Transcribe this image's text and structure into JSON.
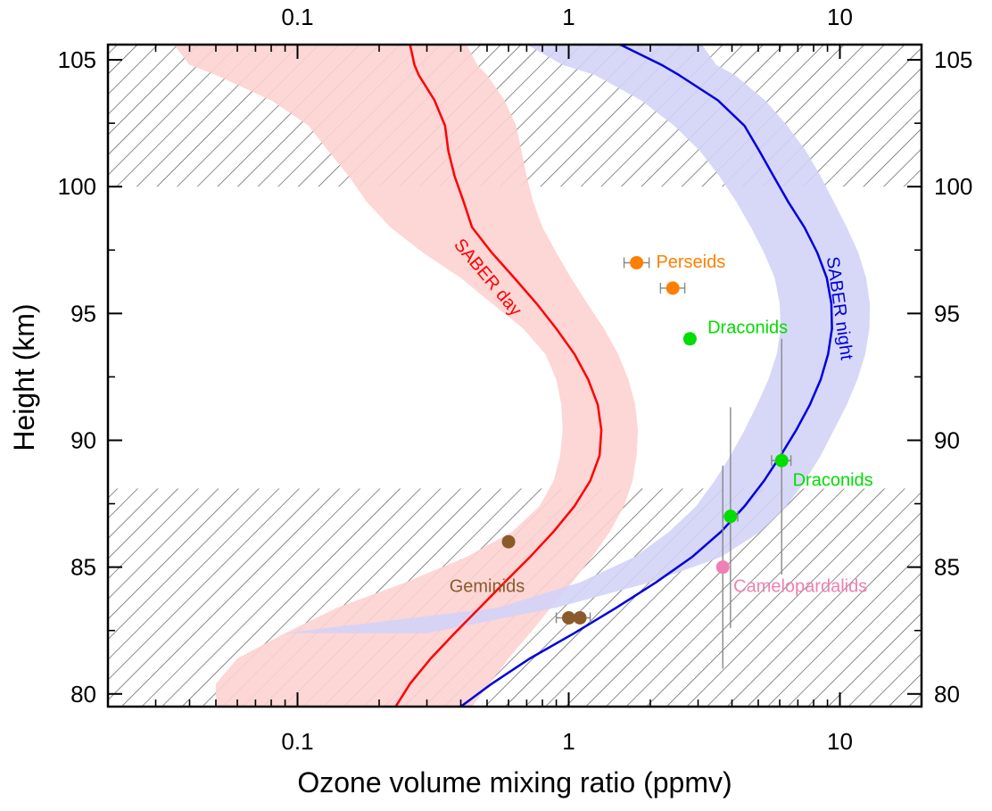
{
  "chart_data": {
    "type": "scatter",
    "title": "",
    "xlabel": "Ozone volume mixing ratio (ppmv)",
    "ylabel": "Height (km)",
    "x_scale": "log",
    "xlim": [
      0.02,
      20
    ],
    "ylim": [
      79.5,
      105.6
    ],
    "x_ticks": [
      0.1,
      1,
      10
    ],
    "x_tick_labels": [
      "0.1",
      "1",
      "10"
    ],
    "y_ticks": [
      80,
      85,
      90,
      95,
      100,
      105
    ],
    "y_tick_labels": [
      "80",
      "85",
      "90",
      "95",
      "100",
      "105"
    ],
    "grid": false,
    "colors": {
      "day_line": "#ff0000",
      "day_band": "#fdd2d2",
      "night_line": "#0000dd",
      "night_band": "#d3d3f7",
      "hatch": "#555555",
      "perseids": "#ff7f00",
      "draconids": "#00dd00",
      "geminids": "#8b5a2b",
      "camelopardalids": "#f07fb4",
      "error_bar": "#888888"
    },
    "hatched_regions": [
      {
        "y_range": [
          100,
          105.6
        ]
      },
      {
        "y_range": [
          79.5,
          88.1
        ]
      }
    ],
    "series": [
      {
        "name": "SABER day",
        "kind": "line",
        "color": "#ff0000",
        "label_angle": 50,
        "label_at": {
          "x": 0.5,
          "y": 96.4
        },
        "points": [
          [
            0.23,
            79.5
          ],
          [
            0.26,
            80.4
          ],
          [
            0.31,
            81.4
          ],
          [
            0.38,
            82.4
          ],
          [
            0.47,
            83.4
          ],
          [
            0.58,
            84.4
          ],
          [
            0.72,
            85.4
          ],
          [
            0.88,
            86.4
          ],
          [
            1.05,
            87.4
          ],
          [
            1.2,
            88.4
          ],
          [
            1.3,
            89.4
          ],
          [
            1.32,
            90.4
          ],
          [
            1.28,
            91.4
          ],
          [
            1.18,
            92.4
          ],
          [
            1.05,
            93.4
          ],
          [
            0.9,
            94.4
          ],
          [
            0.76,
            95.4
          ],
          [
            0.63,
            96.4
          ],
          [
            0.52,
            97.4
          ],
          [
            0.44,
            98.4
          ],
          [
            0.41,
            99.4
          ],
          [
            0.38,
            100.4
          ],
          [
            0.36,
            101.4
          ],
          [
            0.35,
            102.4
          ],
          [
            0.32,
            103.4
          ],
          [
            0.28,
            104.4
          ],
          [
            0.27,
            104.8
          ],
          [
            0.26,
            105.6
          ]
        ]
      },
      {
        "name": "SABER day band",
        "kind": "band",
        "color": "#fdd2d2",
        "lower": [
          [
            0.05,
            79.5
          ],
          [
            0.05,
            80.4
          ],
          [
            0.06,
            81.4
          ],
          [
            0.09,
            82.4
          ],
          [
            0.14,
            83.4
          ],
          [
            0.25,
            84.4
          ],
          [
            0.42,
            85.4
          ],
          [
            0.62,
            86.4
          ],
          [
            0.78,
            87.4
          ],
          [
            0.88,
            88.4
          ],
          [
            0.93,
            89.4
          ],
          [
            0.95,
            90.4
          ],
          [
            0.94,
            91.4
          ],
          [
            0.9,
            92.4
          ],
          [
            0.82,
            93.4
          ],
          [
            0.68,
            94.4
          ],
          [
            0.52,
            95.4
          ],
          [
            0.4,
            96.4
          ],
          [
            0.29,
            97.4
          ],
          [
            0.22,
            98.4
          ],
          [
            0.18,
            99.4
          ],
          [
            0.155,
            100.4
          ],
          [
            0.13,
            101.4
          ],
          [
            0.11,
            102.4
          ],
          [
            0.08,
            103.4
          ],
          [
            0.05,
            104.4
          ],
          [
            0.04,
            104.8
          ],
          [
            0.035,
            105.6
          ]
        ],
        "upper": [
          [
            0.44,
            79.5
          ],
          [
            0.51,
            80.4
          ],
          [
            0.6,
            81.4
          ],
          [
            0.72,
            82.4
          ],
          [
            0.86,
            83.4
          ],
          [
            1.03,
            84.4
          ],
          [
            1.22,
            85.4
          ],
          [
            1.42,
            86.4
          ],
          [
            1.6,
            87.4
          ],
          [
            1.72,
            88.4
          ],
          [
            1.78,
            89.4
          ],
          [
            1.8,
            90.4
          ],
          [
            1.76,
            91.4
          ],
          [
            1.66,
            92.4
          ],
          [
            1.52,
            93.4
          ],
          [
            1.35,
            94.4
          ],
          [
            1.17,
            95.4
          ],
          [
            1.02,
            96.4
          ],
          [
            0.9,
            97.4
          ],
          [
            0.8,
            98.4
          ],
          [
            0.74,
            99.4
          ],
          [
            0.7,
            100.4
          ],
          [
            0.67,
            101.4
          ],
          [
            0.64,
            102.4
          ],
          [
            0.58,
            103.4
          ],
          [
            0.5,
            104.4
          ],
          [
            0.46,
            104.8
          ],
          [
            0.42,
            105.6
          ]
        ]
      },
      {
        "name": "SABER night",
        "kind": "line",
        "color": "#0000dd",
        "label_angle": 82,
        "label_at": {
          "x": 9.9,
          "y": 95.2
        },
        "points": [
          [
            0.4,
            79.5
          ],
          [
            0.52,
            80.4
          ],
          [
            0.72,
            81.4
          ],
          [
            1.05,
            82.4
          ],
          [
            1.5,
            83.4
          ],
          [
            2.1,
            84.4
          ],
          [
            2.85,
            85.4
          ],
          [
            3.65,
            86.4
          ],
          [
            4.45,
            87.4
          ],
          [
            5.25,
            88.4
          ],
          [
            6.05,
            89.4
          ],
          [
            6.9,
            90.4
          ],
          [
            7.75,
            91.4
          ],
          [
            8.5,
            92.4
          ],
          [
            9.05,
            93.4
          ],
          [
            9.35,
            94.4
          ],
          [
            9.3,
            95.4
          ],
          [
            8.95,
            96.4
          ],
          [
            8.25,
            97.4
          ],
          [
            7.4,
            98.4
          ],
          [
            6.45,
            99.4
          ],
          [
            5.7,
            100.4
          ],
          [
            5.05,
            101.4
          ],
          [
            4.45,
            102.4
          ],
          [
            3.55,
            103.4
          ],
          [
            2.55,
            104.4
          ],
          [
            2.2,
            104.8
          ],
          [
            1.55,
            105.6
          ]
        ]
      },
      {
        "name": "SABER night band",
        "kind": "band",
        "color": "#d3d3f7",
        "lower": [
          [
            0.02,
            79.5
          ],
          [
            0.02,
            80.4
          ],
          [
            0.02,
            81.4
          ],
          [
            0.02,
            82.4
          ],
          [
            0.09,
            82.4
          ],
          [
            0.55,
            83.4
          ],
          [
            1.1,
            84.4
          ],
          [
            1.75,
            85.4
          ],
          [
            2.35,
            86.4
          ],
          [
            2.95,
            87.4
          ],
          [
            3.45,
            88.4
          ],
          [
            3.95,
            89.4
          ],
          [
            4.45,
            90.4
          ],
          [
            4.95,
            91.4
          ],
          [
            5.45,
            92.4
          ],
          [
            5.85,
            93.4
          ],
          [
            6.05,
            94.4
          ],
          [
            6.0,
            95.4
          ],
          [
            5.75,
            96.4
          ],
          [
            5.25,
            97.4
          ],
          [
            4.7,
            98.4
          ],
          [
            4.15,
            99.4
          ],
          [
            3.6,
            100.4
          ],
          [
            3.05,
            101.4
          ],
          [
            2.45,
            102.4
          ],
          [
            1.85,
            103.4
          ],
          [
            1.25,
            104.4
          ],
          [
            0.95,
            104.8
          ],
          [
            0.7,
            105.6
          ]
        ],
        "upper": [
          [
            0.02,
            79.5
          ],
          [
            0.02,
            80.4
          ],
          [
            0.02,
            81.4
          ],
          [
            0.02,
            82.4
          ],
          [
            0.3,
            82.4
          ],
          [
            0.9,
            83.4
          ],
          [
            2.0,
            84.4
          ],
          [
            3.65,
            85.4
          ],
          [
            5.1,
            86.4
          ],
          [
            6.35,
            87.4
          ],
          [
            7.45,
            88.4
          ],
          [
            8.5,
            89.4
          ],
          [
            9.5,
            90.4
          ],
          [
            10.6,
            91.4
          ],
          [
            11.6,
            92.4
          ],
          [
            12.4,
            93.4
          ],
          [
            12.85,
            94.4
          ],
          [
            12.9,
            95.4
          ],
          [
            12.5,
            96.4
          ],
          [
            11.7,
            97.4
          ],
          [
            10.6,
            98.4
          ],
          [
            9.5,
            99.4
          ],
          [
            8.5,
            100.4
          ],
          [
            7.5,
            101.4
          ],
          [
            6.4,
            102.4
          ],
          [
            5.3,
            103.4
          ],
          [
            4.1,
            104.4
          ],
          [
            3.5,
            104.8
          ],
          [
            3.1,
            105.6
          ]
        ]
      },
      {
        "name": "Perseids",
        "kind": "points",
        "color": "#ff7f00",
        "points": [
          {
            "x": 1.78,
            "y": 97.0,
            "xerr": [
              1.6,
              1.98
            ]
          },
          {
            "x": 2.42,
            "y": 96.0,
            "xerr": [
              2.18,
              2.68
            ]
          }
        ],
        "label_at": {
          "x": 2.1,
          "y": 97.0
        }
      },
      {
        "name": "Draconids",
        "kind": "points",
        "color": "#00dd00",
        "points": [
          {
            "x": 2.8,
            "y": 94.0,
            "xerr": [
              2.7,
              2.9
            ]
          }
        ],
        "label_at": {
          "x": 3.25,
          "y": 94.4
        }
      },
      {
        "name": "Draconids",
        "kind": "points",
        "color": "#00dd00",
        "points": [
          {
            "x": 6.1,
            "y": 89.2,
            "xerr": [
              5.6,
              6.6
            ],
            "yerr": [
              84.7,
              94.0
            ]
          },
          {
            "x": 3.95,
            "y": 87.0,
            "xerr": [
              3.7,
              4.2
            ],
            "yerr": [
              82.6,
              91.3
            ]
          }
        ],
        "label_at": {
          "x": 6.7,
          "y": 88.4
        }
      },
      {
        "name": "Geminids",
        "kind": "points",
        "color": "#8b5a2b",
        "points": [
          {
            "x": 0.6,
            "y": 86.0
          },
          {
            "x": 1.0,
            "y": 83.0,
            "xerr": [
              0.9,
              1.1
            ]
          },
          {
            "x": 1.1,
            "y": 83.0,
            "xerr": [
              1.0,
              1.2
            ]
          }
        ],
        "label_at": {
          "x": 0.5,
          "y": 84.2
        }
      },
      {
        "name": "Camelopardalids",
        "kind": "points",
        "color": "#f07fb4",
        "points": [
          {
            "x": 3.7,
            "y": 85.0,
            "yerr": [
              81.0,
              89.0
            ]
          }
        ],
        "label_at": {
          "x": 4.05,
          "y": 84.2
        }
      }
    ]
  }
}
